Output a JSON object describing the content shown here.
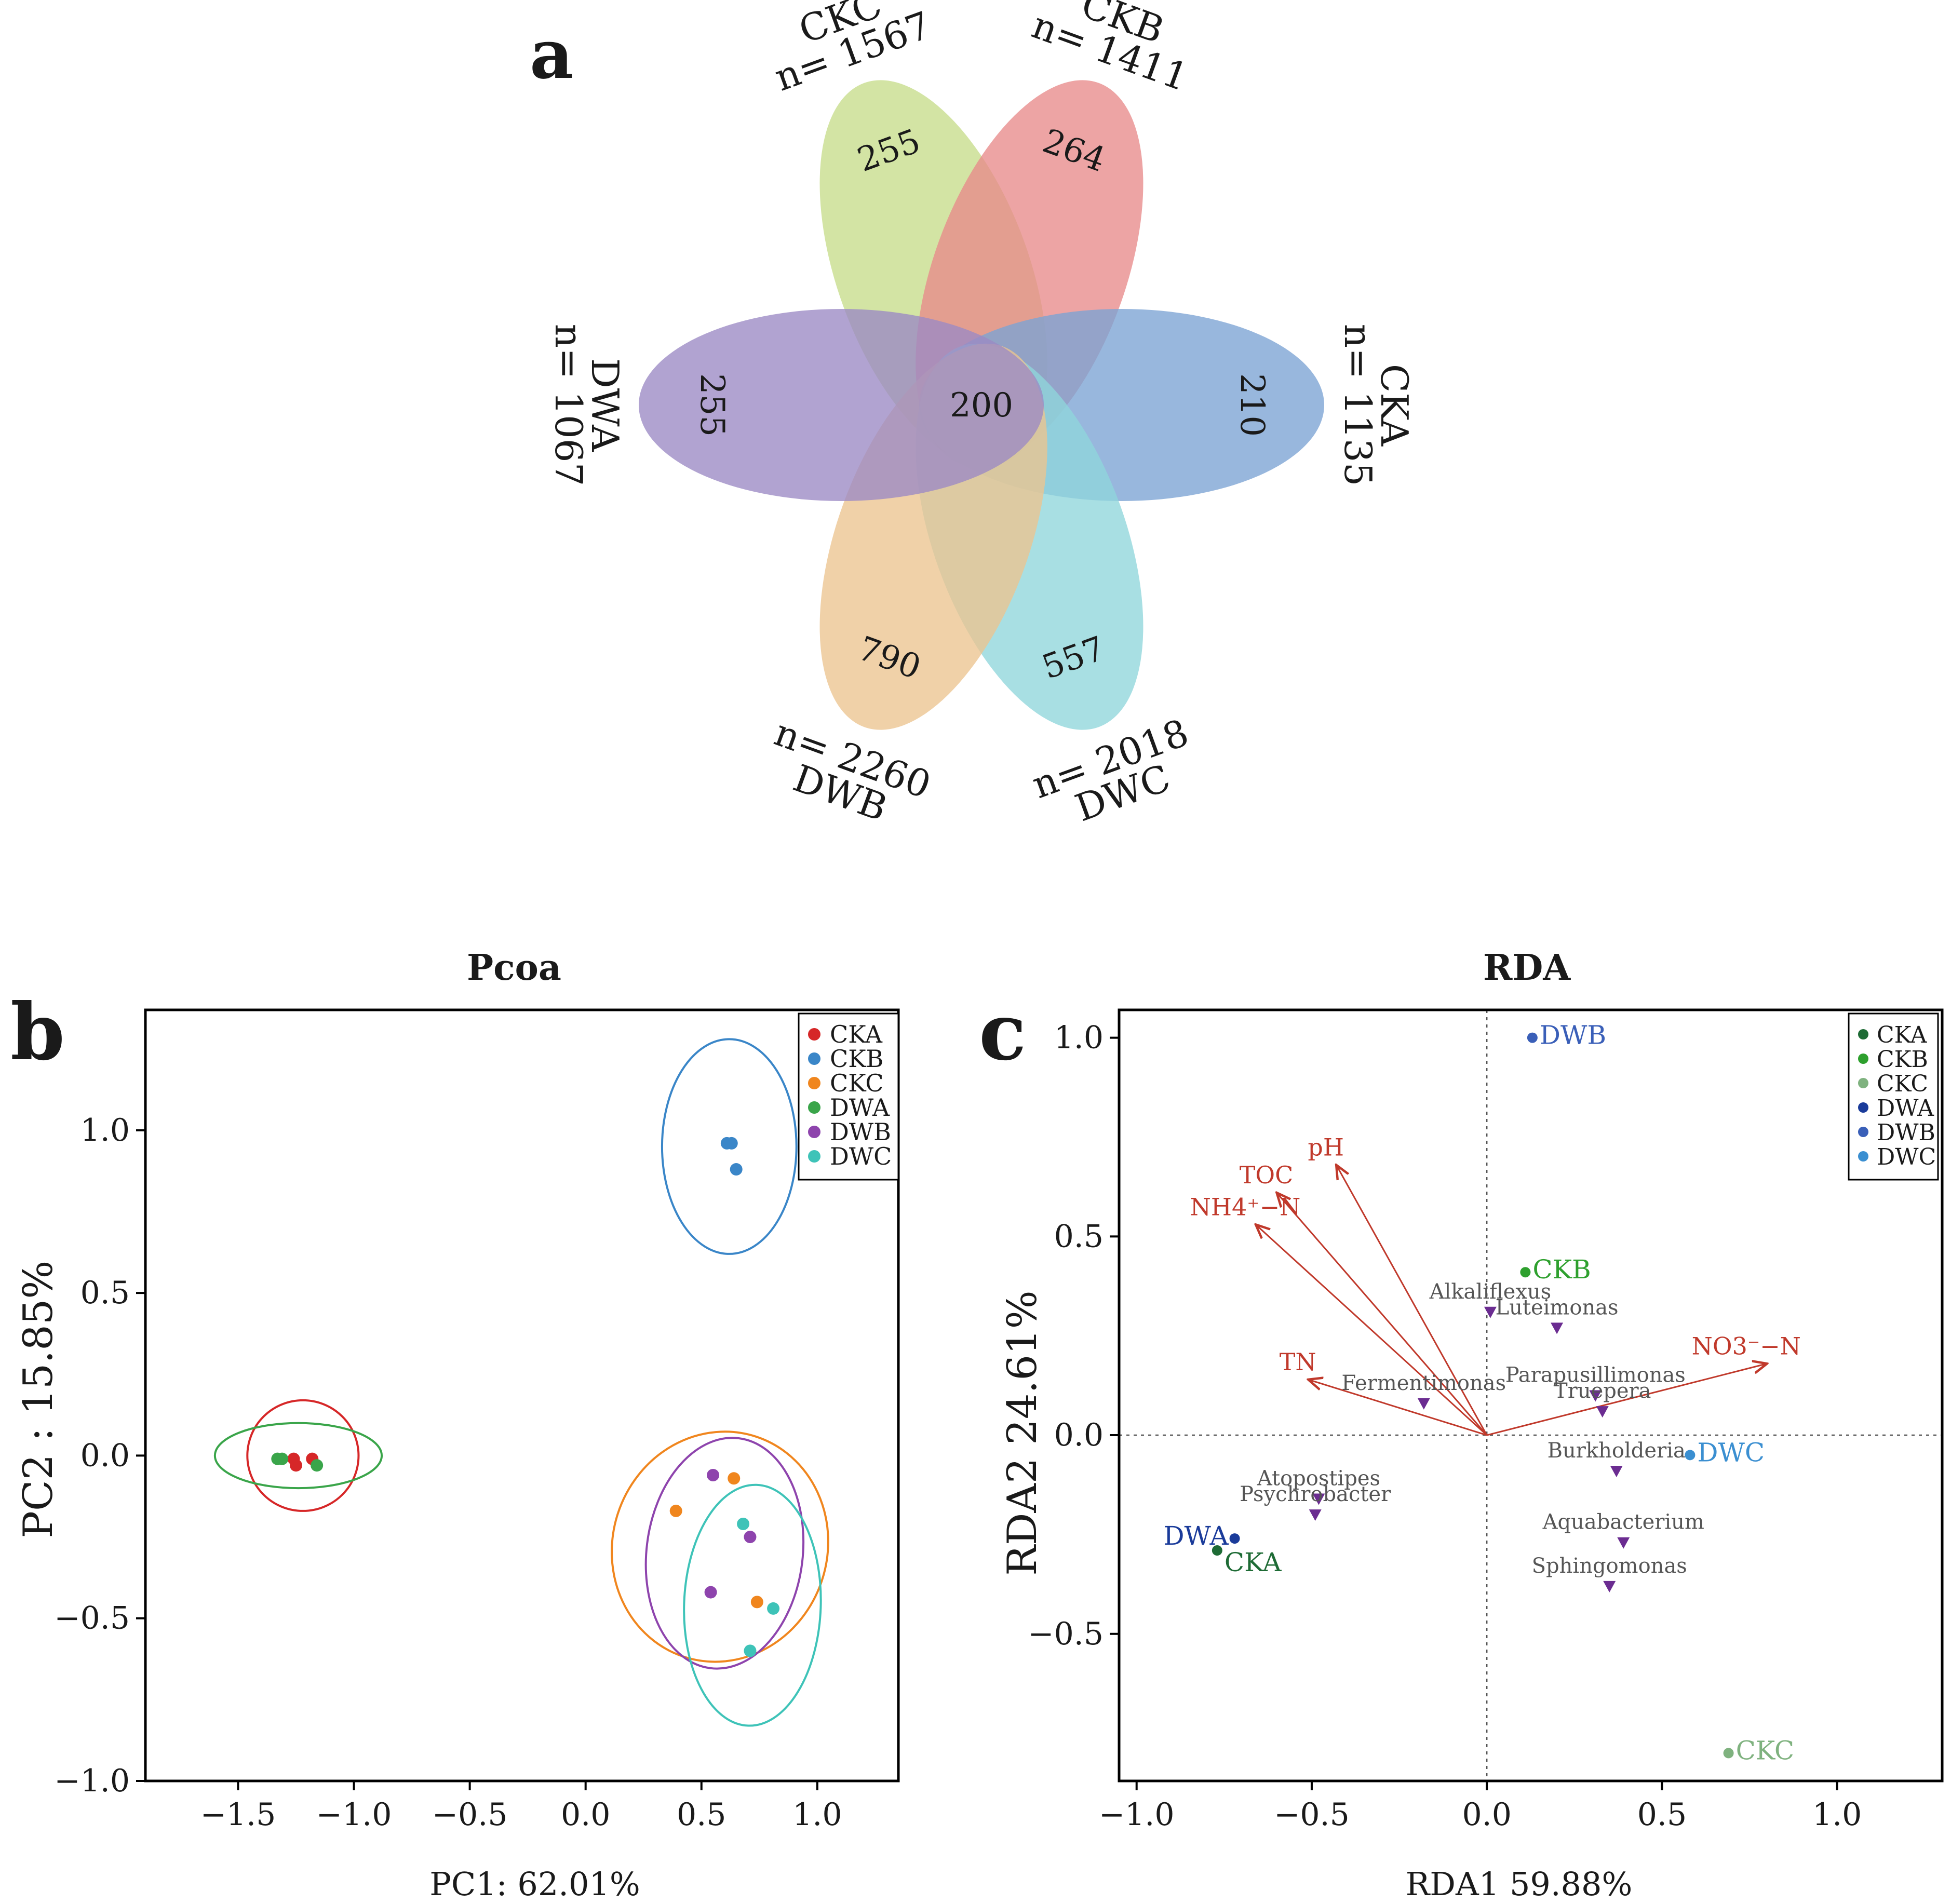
{
  "panel_labels": {
    "a": "a",
    "b": "b",
    "c": "c"
  },
  "chart_data": [
    {
      "type": "venn-flower",
      "panel": "a",
      "center_value": "200",
      "petals": [
        {
          "name": "CKC",
          "n_label": "n= 1567",
          "unique": "255",
          "color": "#c7dc8a"
        },
        {
          "name": "CKB",
          "n_label": "n= 1411",
          "unique": "264",
          "color": "#e88a8a"
        },
        {
          "name": "CKA",
          "n_label": "n= 1135",
          "unique": "210",
          "color": "#7ba3d3"
        },
        {
          "name": "DWC",
          "n_label": "n= 2018",
          "unique": "557",
          "color": "#8fd6db"
        },
        {
          "name": "DWB",
          "n_label": "n= 2260",
          "unique": "790",
          "color": "#ecc48f"
        },
        {
          "name": "DWA",
          "n_label": "n= 1067",
          "unique": "255",
          "color": "#9b89c4"
        }
      ]
    },
    {
      "type": "scatter",
      "panel": "b",
      "title": "Pcoa",
      "xlabel": "PC1: 62.01%",
      "ylabel": "PC2 :  15.85%",
      "xlim": [
        -1.9,
        1.35
      ],
      "ylim": [
        -1.0,
        1.37
      ],
      "xticks": [
        -1.5,
        -1.0,
        -0.5,
        0.0,
        0.5,
        1.0
      ],
      "yticks": [
        -1.0,
        -0.5,
        0.0,
        0.5,
        1.0
      ],
      "xtick_labels": [
        "−1.5",
        "−1.0",
        "−0.5",
        "0.0",
        "0.5",
        "1.0"
      ],
      "ytick_labels": [
        "−1.0",
        "−0.5",
        "0.0",
        "0.5",
        "1.0"
      ],
      "legend_position": "top-right",
      "series": [
        {
          "name": "CKA",
          "color": "#d62728",
          "points": [
            [
              -1.26,
              -0.01
            ],
            [
              -1.25,
              -0.03
            ],
            [
              -1.18,
              -0.01
            ]
          ],
          "ellipse": {
            "cx": -1.22,
            "cy": 0.0,
            "rx": 0.24,
            "ry": 0.17,
            "angle": 0
          }
        },
        {
          "name": "CKB",
          "color": "#3a86c8",
          "points": [
            [
              0.61,
              0.96
            ],
            [
              0.63,
              0.96
            ],
            [
              0.65,
              0.88
            ]
          ],
          "ellipse": {
            "cx": 0.62,
            "cy": 0.95,
            "rx": 0.29,
            "ry": 0.33,
            "angle": 0
          }
        },
        {
          "name": "CKC",
          "color": "#f0861e",
          "points": [
            [
              0.39,
              -0.17
            ],
            [
              0.64,
              -0.07
            ],
            [
              0.74,
              -0.45
            ]
          ],
          "ellipse": {
            "cx": 0.58,
            "cy": -0.28,
            "rx": 0.5,
            "ry": 0.33,
            "angle": -72
          }
        },
        {
          "name": "DWA",
          "color": "#3aa54a",
          "points": [
            [
              -1.33,
              -0.01
            ],
            [
              -1.31,
              -0.01
            ],
            [
              -1.16,
              -0.03
            ]
          ],
          "ellipse": {
            "cx": -1.24,
            "cy": 0.0,
            "rx": 0.36,
            "ry": 0.1,
            "angle": 0
          }
        },
        {
          "name": "DWB",
          "color": "#8e44ad",
          "points": [
            [
              0.55,
              -0.06
            ],
            [
              0.71,
              -0.25
            ],
            [
              0.54,
              -0.42
            ]
          ],
          "ellipse": {
            "cx": 0.6,
            "cy": -0.3,
            "rx": 0.5,
            "ry": 0.24,
            "angle": -83
          }
        },
        {
          "name": "DWC",
          "color": "#3ec3b8",
          "points": [
            [
              0.68,
              -0.21
            ],
            [
              0.81,
              -0.47
            ],
            [
              0.71,
              -0.6
            ]
          ],
          "ellipse": {
            "cx": 0.72,
            "cy": -0.46,
            "rx": 0.52,
            "ry": 0.21,
            "angle": -88
          }
        }
      ]
    },
    {
      "type": "biplot",
      "panel": "c",
      "title": "RDA",
      "xlabel": "RDA1  59.88%",
      "ylabel": "RDA2  24.61%",
      "xlim": [
        -1.05,
        1.3
      ],
      "ylim": [
        -0.87,
        1.07
      ],
      "xticks": [
        -1.0,
        -0.5,
        0.0,
        0.5,
        1.0
      ],
      "yticks": [
        -0.5,
        0.0,
        0.5,
        1.0
      ],
      "xtick_labels": [
        "−1.0",
        "−0.5",
        "0.0",
        "0.5",
        "1.0"
      ],
      "ytick_labels": [
        "−0.5",
        "0.0",
        "0.5",
        "1.0"
      ],
      "legend_position": "top-right",
      "arrow_color": "#c0392b",
      "species_color": "#6b2c91",
      "arrows": [
        {
          "label": "pH",
          "x": -0.43,
          "y": 0.68
        },
        {
          "label": "TOC",
          "x": -0.6,
          "y": 0.61
        },
        {
          "label": "NH4⁺−N",
          "x": -0.66,
          "y": 0.53
        },
        {
          "label": "TN",
          "x": -0.51,
          "y": 0.14
        },
        {
          "label": "NO3⁻−N",
          "x": 0.8,
          "y": 0.18
        }
      ],
      "species": [
        {
          "label": "Alkaliflexus",
          "x": 0.01,
          "y": 0.31
        },
        {
          "label": "Luteimonas",
          "x": 0.2,
          "y": 0.27
        },
        {
          "label": "Parapusillimonas",
          "x": 0.31,
          "y": 0.1
        },
        {
          "label": "Fermentimonas",
          "x": -0.18,
          "y": 0.08
        },
        {
          "label": "Truepera",
          "x": 0.33,
          "y": 0.06
        },
        {
          "label": "Burkholderia",
          "x": 0.37,
          "y": -0.09
        },
        {
          "label": "Atopostipes",
          "x": -0.48,
          "y": -0.16
        },
        {
          "label": "Psychrobacter",
          "x": -0.49,
          "y": -0.2
        },
        {
          "label": "Aquabacterium",
          "x": 0.39,
          "y": -0.27
        },
        {
          "label": "Sphingomonas",
          "x": 0.35,
          "y": -0.38
        }
      ],
      "samples": [
        {
          "label": "CKA",
          "x": -0.77,
          "y": -0.29,
          "color": "#1e6b35"
        },
        {
          "label": "CKB",
          "x": 0.11,
          "y": 0.41,
          "color": "#2ea02e"
        },
        {
          "label": "CKC",
          "x": 0.69,
          "y": -0.8,
          "color": "#7fb27f"
        },
        {
          "label": "DWA",
          "x": -0.72,
          "y": -0.26,
          "color": "#1a3b9a"
        },
        {
          "label": "DWB",
          "x": 0.13,
          "y": 1.0,
          "color": "#3a5fb8"
        },
        {
          "label": "DWC",
          "x": 0.58,
          "y": -0.05,
          "color": "#3b8fd1"
        }
      ]
    }
  ]
}
